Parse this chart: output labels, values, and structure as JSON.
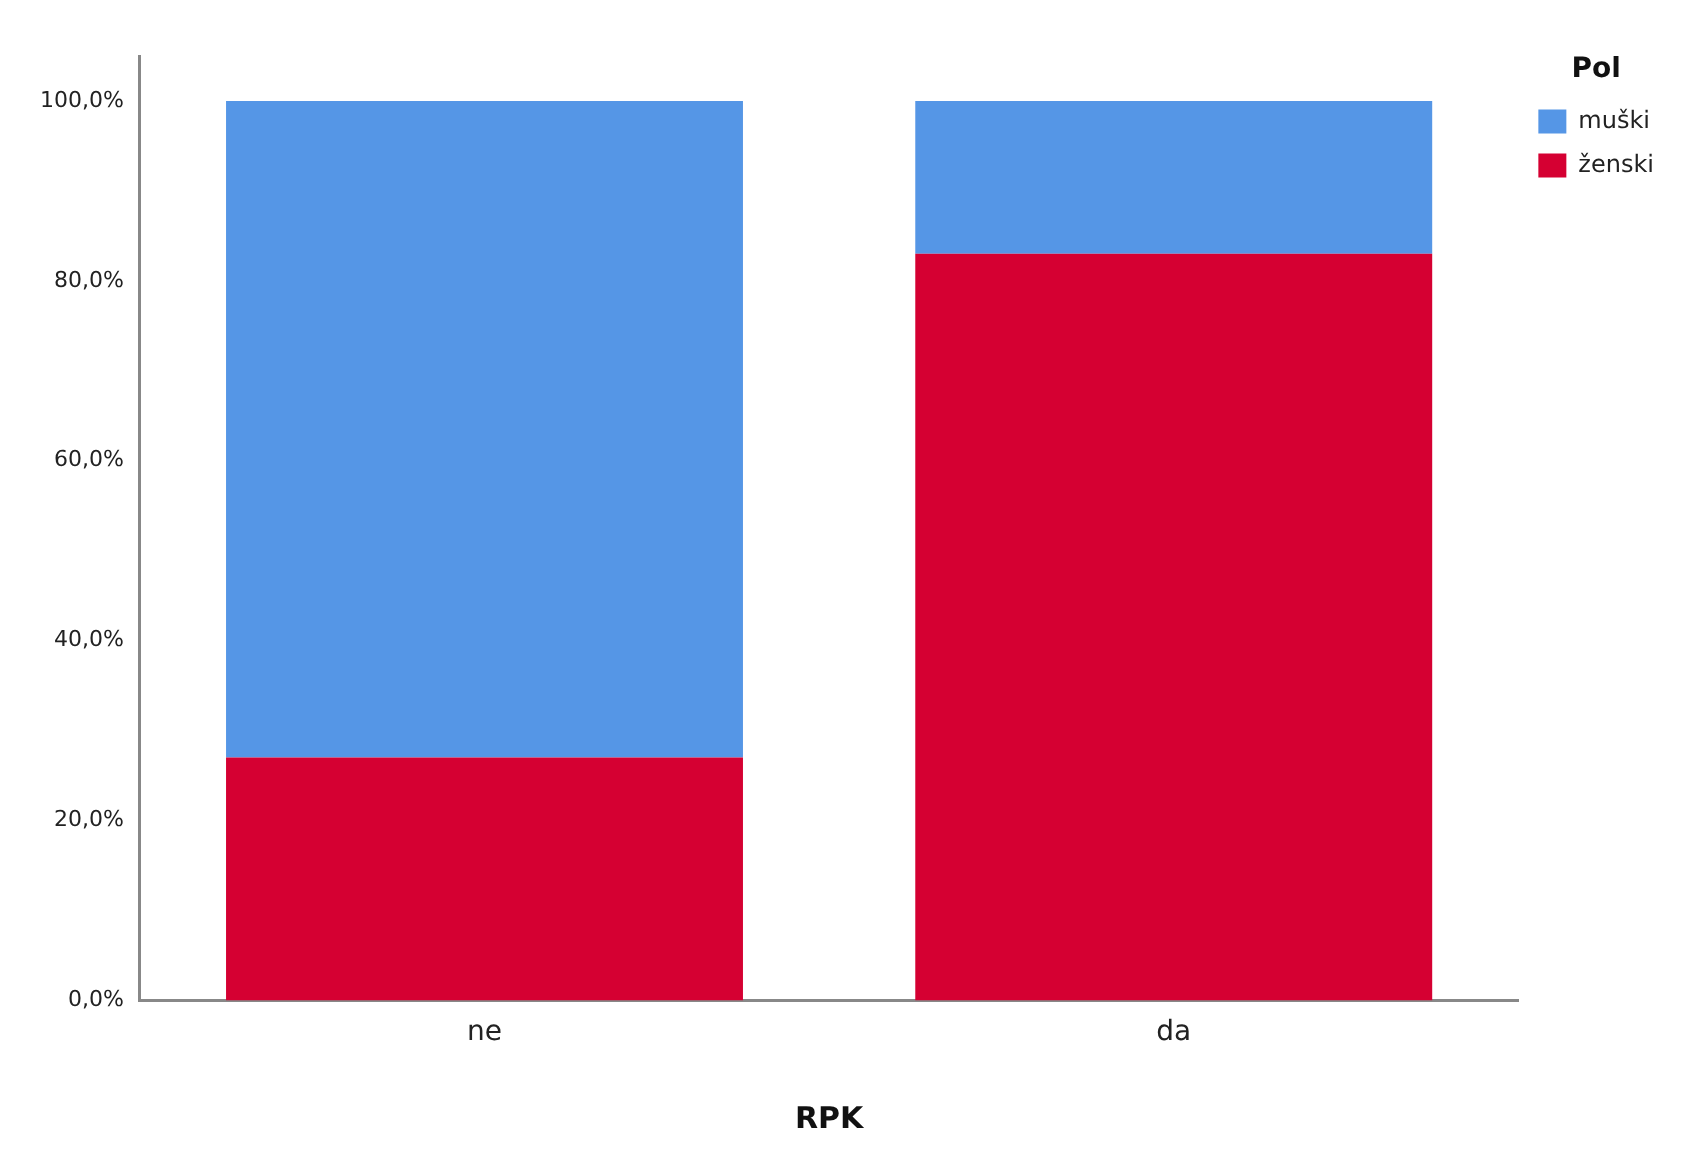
{
  "chart_data": {
    "type": "bar",
    "stacked": true,
    "xlabel": "RPK",
    "legend_title": "Pol",
    "legend": "top right",
    "grid": false,
    "categories": [
      "ne",
      "da"
    ],
    "series": [
      {
        "name": "ženski",
        "color": "#d50032",
        "values": [
          27,
          83
        ]
      },
      {
        "name": "muški",
        "color": "#5596e6",
        "values": [
          73,
          17
        ]
      }
    ],
    "ylim": [
      0,
      105
    ],
    "yticks": [
      {
        "value": 0,
        "label": "0,0%"
      },
      {
        "value": 20,
        "label": "20,0%"
      },
      {
        "value": 40,
        "label": "40,0%"
      },
      {
        "value": 60,
        "label": "60,0%"
      },
      {
        "value": 80,
        "label": "80,0%"
      },
      {
        "value": 100,
        "label": "100,0%"
      }
    ]
  }
}
